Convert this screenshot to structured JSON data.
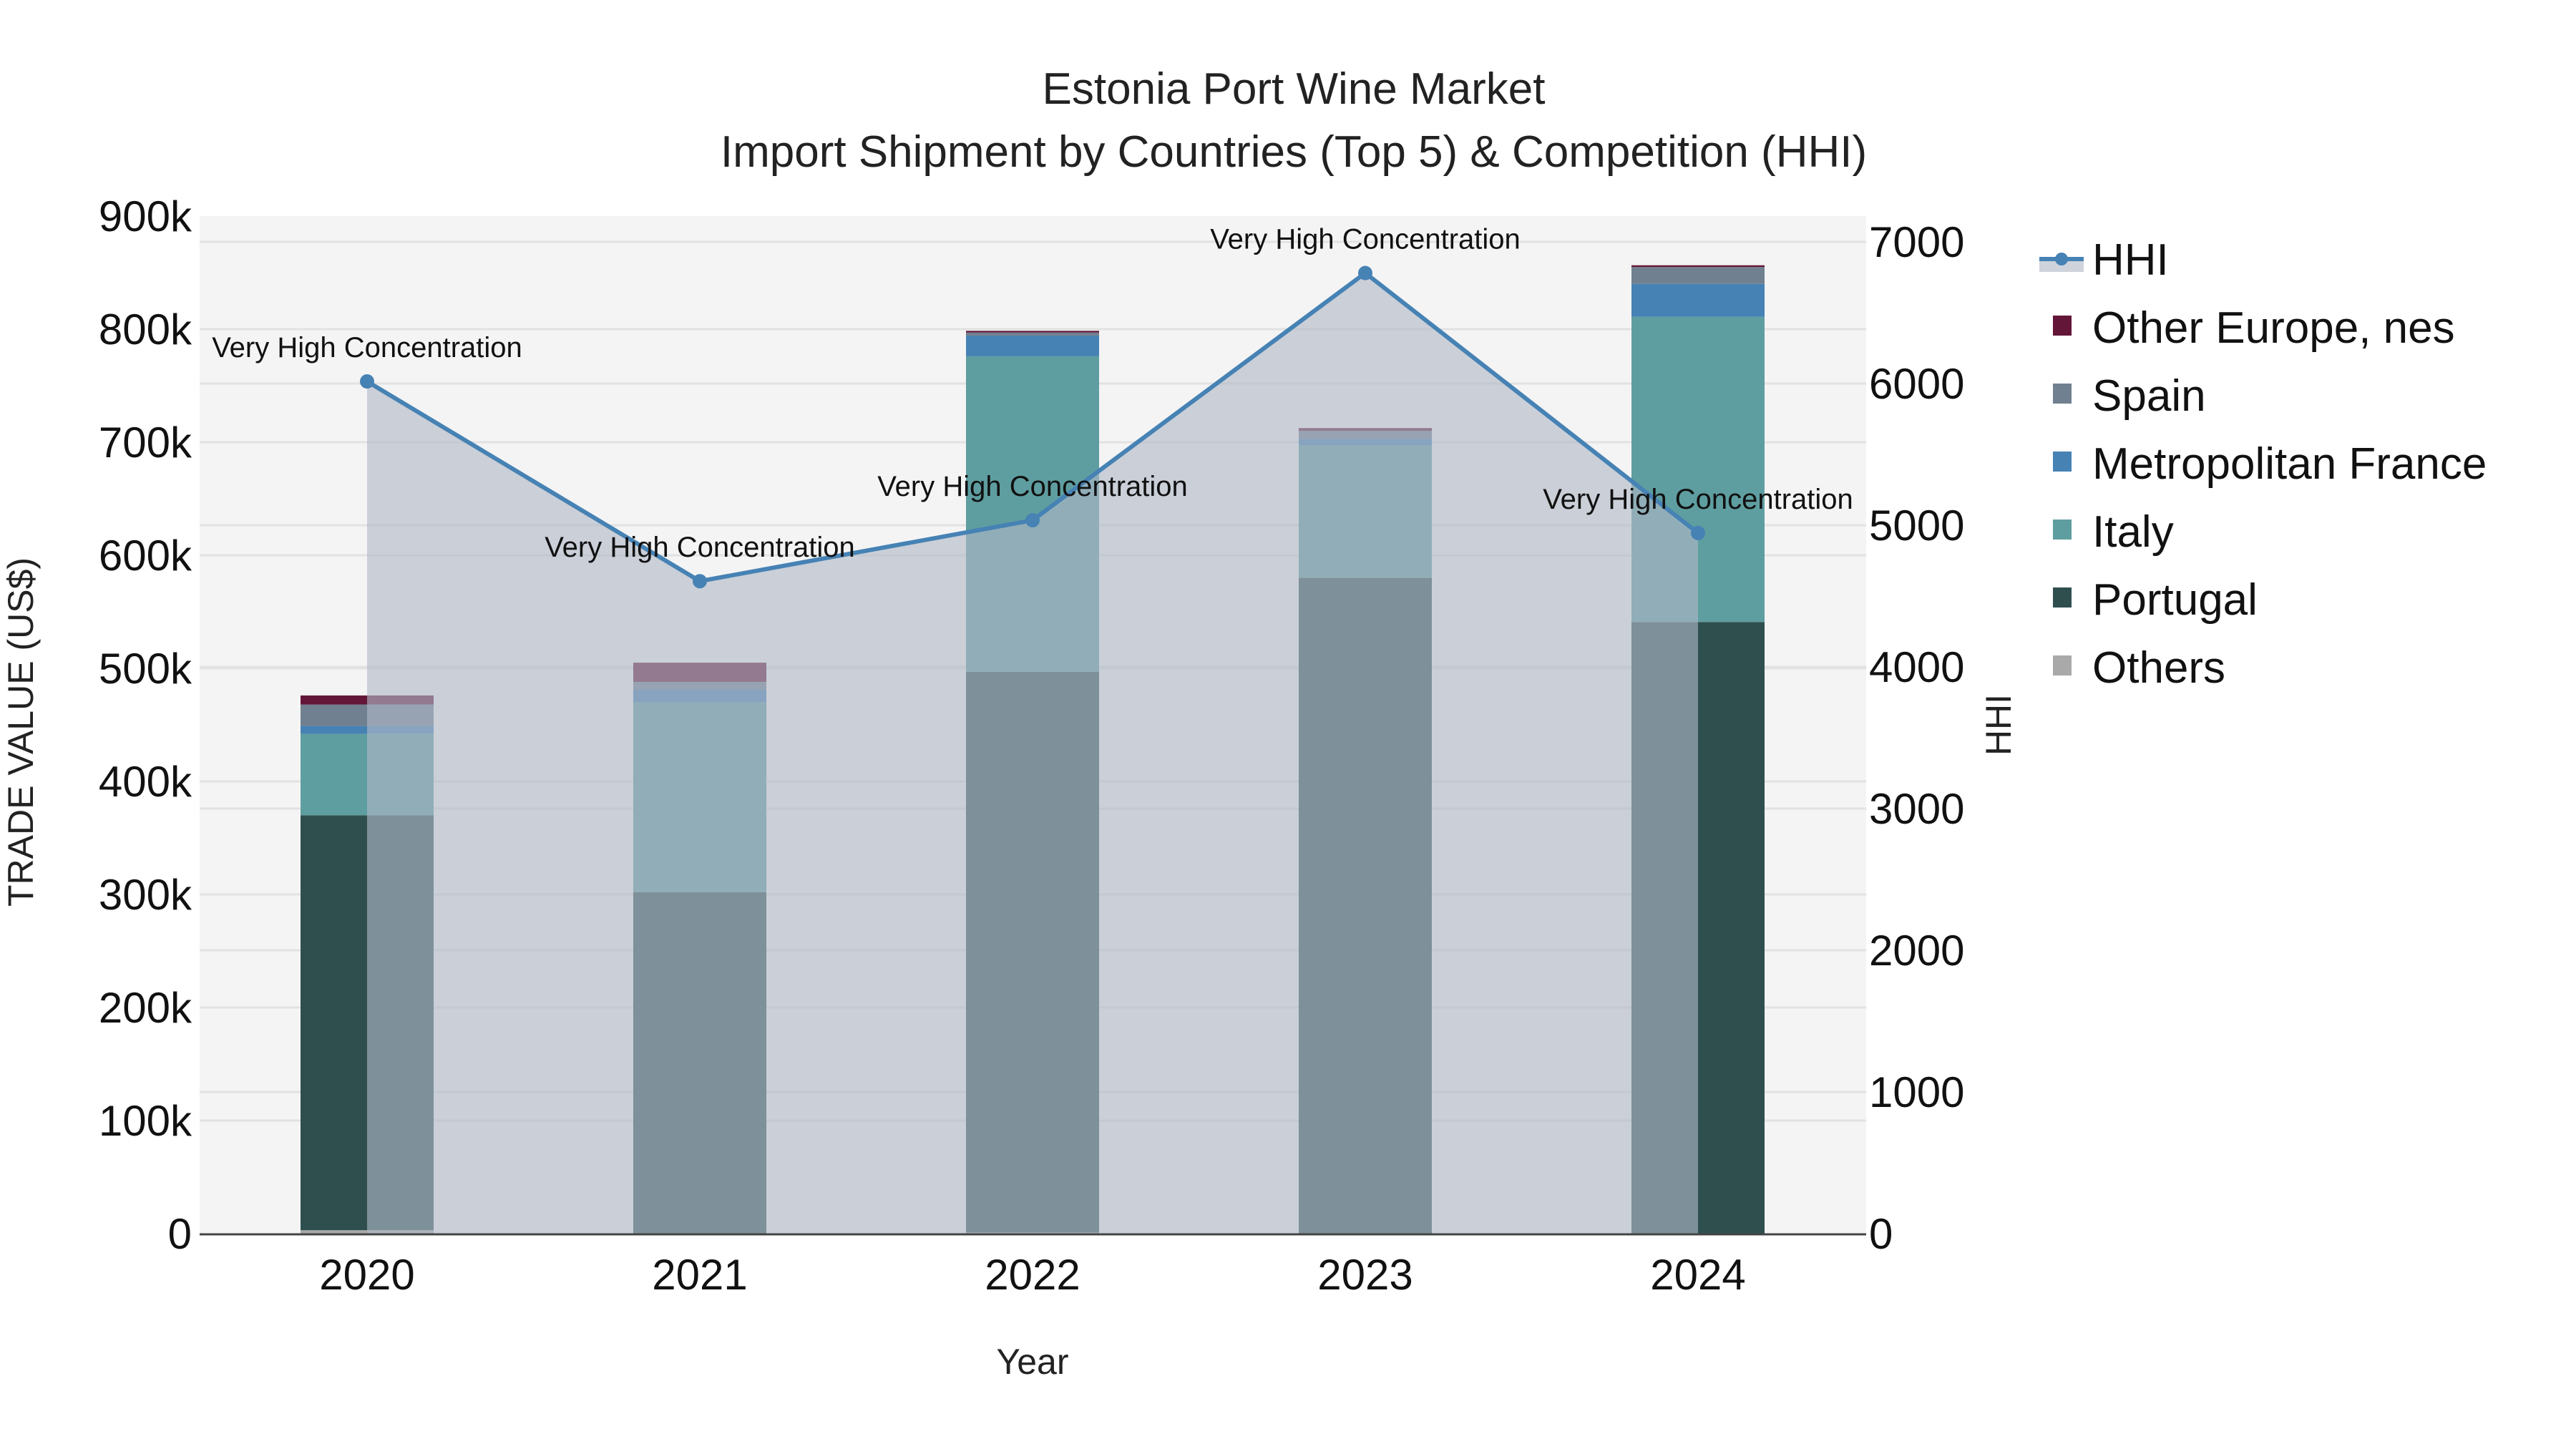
{
  "title": {
    "line1": "Estonia Port Wine Market",
    "line2": "Import Shipment by Countries (Top 5) & Competition (HHI)"
  },
  "axes": {
    "x_title": "Year",
    "y_left_title": "TRADE VALUE (US$)",
    "y_right_title": "HHI",
    "y_left_ticks": [
      "0",
      "100k",
      "200k",
      "300k",
      "400k",
      "500k",
      "600k",
      "700k",
      "800k",
      "900k"
    ],
    "y_right_ticks": [
      "0",
      "1000",
      "2000",
      "3000",
      "4000",
      "5000",
      "6000",
      "7000"
    ]
  },
  "legend": [
    {
      "name": "HHI",
      "type": "line",
      "color": "#4682B4"
    },
    {
      "name": "Other Europe, nes",
      "type": "bar",
      "color": "#641638"
    },
    {
      "name": "Spain",
      "type": "bar",
      "color": "#708090"
    },
    {
      "name": "Metropolitan France",
      "type": "bar",
      "color": "#4682B4"
    },
    {
      "name": "Italy",
      "type": "bar",
      "color": "#5F9EA0"
    },
    {
      "name": "Portugal",
      "type": "bar",
      "color": "#2F4F4F"
    },
    {
      "name": "Others",
      "type": "bar",
      "color": "#A9A9A9"
    }
  ],
  "chart_data": {
    "type": "bar",
    "subtype": "stacked bar + line (secondary axis)",
    "title": "Estonia Port Wine Market — Import Shipment by Countries (Top 5) & Competition (HHI)",
    "xlabel": "Year",
    "ylabel": "TRADE VALUE (US$)",
    "y2label": "HHI",
    "categories": [
      "2020",
      "2021",
      "2022",
      "2023",
      "2024"
    ],
    "ylim": [
      0,
      900000
    ],
    "y2lim": [
      0,
      7000
    ],
    "grid": true,
    "legend_position": "right",
    "series": [
      {
        "name": "Others",
        "color": "#A9A9A9",
        "values": [
          3000,
          0,
          1000,
          0,
          0
        ]
      },
      {
        "name": "Portugal",
        "color": "#2F4F4F",
        "values": [
          367000,
          302000,
          496000,
          580000,
          541000
        ]
      },
      {
        "name": "Italy",
        "color": "#5F9EA0",
        "values": [
          72000,
          168000,
          279000,
          117000,
          270000
        ]
      },
      {
        "name": "Metropolitan France",
        "color": "#4682B4",
        "values": [
          7000,
          11000,
          18000,
          6000,
          29000
        ]
      },
      {
        "name": "Spain",
        "color": "#708090",
        "values": [
          19000,
          7000,
          3000,
          7000,
          15000
        ]
      },
      {
        "name": "Other Europe, nes",
        "color": "#641638",
        "values": [
          8000,
          17000,
          1500,
          2500,
          1500
        ]
      }
    ],
    "line_series": {
      "name": "HHI",
      "axis": "right",
      "color": "#4682B4",
      "values": [
        6015,
        4605,
        5035,
        6780,
        4945
      ],
      "labels": [
        "Very High Concentration",
        "Very High Concentration",
        "Very High Concentration",
        "Very High Concentration",
        "Very High Concentration"
      ]
    }
  }
}
